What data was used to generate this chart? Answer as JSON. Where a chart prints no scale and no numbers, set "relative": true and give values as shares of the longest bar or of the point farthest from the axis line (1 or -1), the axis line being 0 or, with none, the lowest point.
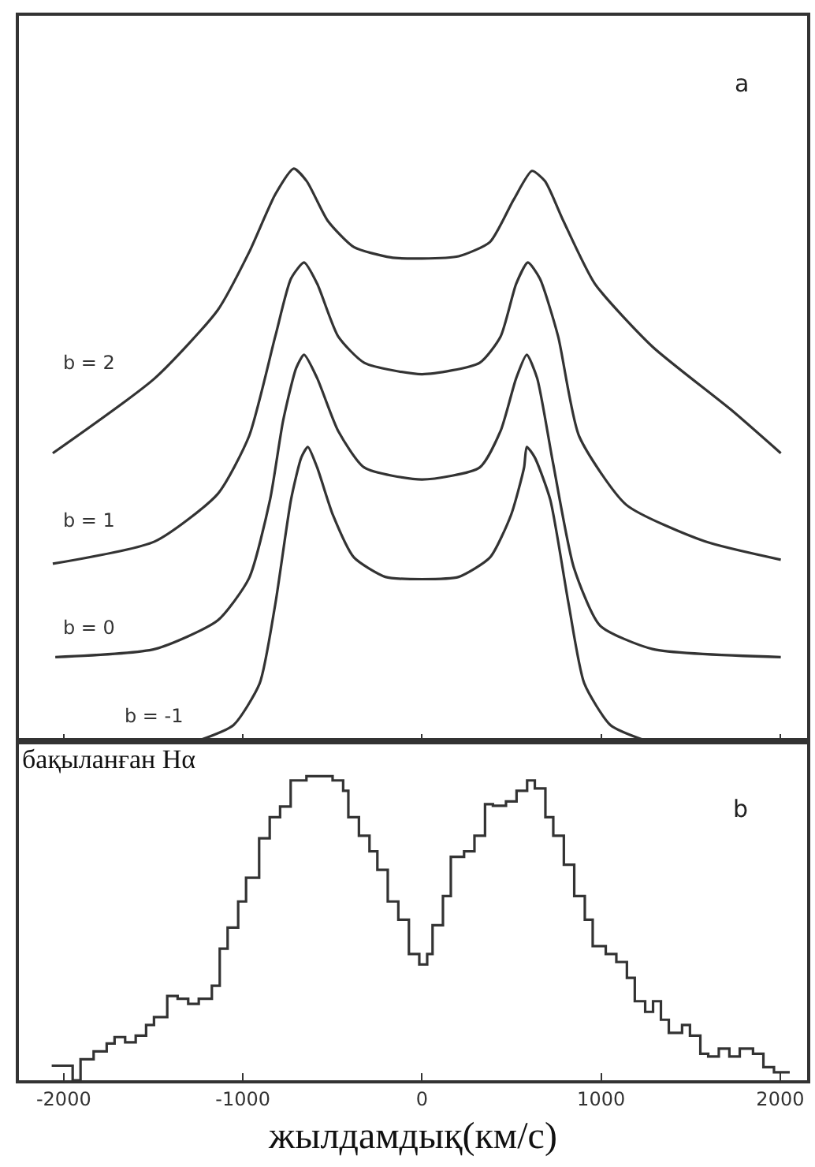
{
  "chart_data": [
    {
      "type": "line",
      "relative": true,
      "xlim": [
        -2250,
        2150
      ],
      "tick_labels": false,
      "annotations": [
        "a"
      ],
      "xticks": [
        -2000,
        -1000,
        0,
        1000,
        2000
      ],
      "series": [
        {
          "name": "b = 2",
          "color": "#333333",
          "x": [
            -2061,
            -1491,
            -1140,
            -965,
            -819,
            -716,
            -643,
            -526,
            -380,
            -175,
            0,
            205,
            380,
            512,
            614,
            687,
            789,
            965,
            1287,
            1725,
            2003
          ],
          "values": [
            0.503,
            0.634,
            0.753,
            0.854,
            0.955,
            1.0,
            0.978,
            0.909,
            0.863,
            0.845,
            0.843,
            0.847,
            0.872,
            0.946,
            0.996,
            0.978,
            0.909,
            0.799,
            0.689,
            0.579,
            0.503
          ]
        },
        {
          "name": "b = 1",
          "color": "#333333",
          "x": [
            -2061,
            -1491,
            -1140,
            -965,
            -819,
            -731,
            -658,
            -585,
            -468,
            -322,
            0,
            322,
            439,
            526,
            591,
            658,
            760,
            877,
            1140,
            1579,
            2003
          ],
          "values": [
            0.31,
            0.349,
            0.432,
            0.533,
            0.707,
            0.808,
            0.836,
            0.799,
            0.707,
            0.661,
            0.641,
            0.661,
            0.707,
            0.799,
            0.836,
            0.808,
            0.707,
            0.533,
            0.413,
            0.349,
            0.317
          ]
        },
        {
          "name": "b = 0",
          "color": "#333333",
          "x": [
            -2047,
            -1491,
            -1140,
            -965,
            -848,
            -775,
            -702,
            -658,
            -585,
            -468,
            -322,
            0,
            322,
            439,
            526,
            585,
            643,
            731,
            848,
            994,
            1287,
            2003
          ],
          "values": [
            0.147,
            0.161,
            0.211,
            0.285,
            0.422,
            0.56,
            0.652,
            0.675,
            0.634,
            0.542,
            0.478,
            0.457,
            0.478,
            0.542,
            0.634,
            0.675,
            0.634,
            0.487,
            0.303,
            0.202,
            0.161,
            0.147
          ]
        },
        {
          "name": "b = -1",
          "color": "#333333",
          "x": [
            -1257,
            -1053,
            -906,
            -819,
            -731,
            -673,
            -637,
            -585,
            -497,
            -380,
            -205,
            0,
            205,
            380,
            497,
            570,
            585,
            629,
            716,
            819,
            906,
            1053,
            1257
          ],
          "values": [
            0,
            0.028,
            0.101,
            0.239,
            0.422,
            0.496,
            0.514,
            0.478,
            0.395,
            0.321,
            0.287,
            0.283,
            0.287,
            0.321,
            0.395,
            0.478,
            0.514,
            0.496,
            0.422,
            0.239,
            0.101,
            0.028,
            0
          ]
        }
      ]
    },
    {
      "type": "step",
      "relative": true,
      "xlim": [
        -2250,
        2150
      ],
      "xlabel": "жылдамдық(км/с)",
      "annotations": [
        "b"
      ],
      "xticks": [
        -2000,
        -1000,
        0,
        1000,
        2000
      ],
      "series": [
        {
          "name": "бақыланған Hα",
          "color": "#333333",
          "x": [
            -2067,
            -1950,
            -1906,
            -1833,
            -1760,
            -1716,
            -1657,
            -1598,
            -1540,
            -1496,
            -1422,
            -1364,
            -1305,
            -1246,
            -1173,
            -1129,
            -1085,
            -1026,
            -982,
            -909,
            -850,
            -792,
            -733,
            -645,
            -499,
            -440,
            -411,
            -352,
            -293,
            -249,
            -191,
            -132,
            -73,
            -15,
            29,
            59,
            117,
            161,
            235,
            293,
            352,
            396,
            469,
            528,
            587,
            630,
            689,
            733,
            792,
            850,
            909,
            953,
            1026,
            1085,
            1144,
            1188,
            1246,
            1290,
            1334,
            1378,
            1452,
            1496,
            1554,
            1598,
            1657,
            1716,
            1774,
            1848,
            1906,
            1965,
            2053
          ],
          "values": [
            0.048,
            0,
            0.069,
            0.095,
            0.121,
            0.142,
            0.125,
            0.147,
            0.182,
            0.208,
            0.277,
            0.268,
            0.251,
            0.268,
            0.311,
            0.433,
            0.502,
            0.588,
            0.666,
            0.796,
            0.865,
            0.9,
            0.986,
            1.0,
            0.986,
            0.952,
            0.865,
            0.804,
            0.753,
            0.692,
            0.588,
            0.528,
            0.415,
            0.381,
            0.415,
            0.51,
            0.606,
            0.735,
            0.753,
            0.804,
            0.908,
            0.903,
            0.917,
            0.952,
            0.986,
            0.96,
            0.865,
            0.804,
            0.709,
            0.606,
            0.528,
            0.441,
            0.415,
            0.389,
            0.337,
            0.26,
            0.225,
            0.26,
            0.199,
            0.156,
            0.182,
            0.147,
            0.087,
            0.078,
            0.104,
            0.078,
            0.104,
            0.087,
            0.043,
            0.026,
            0.026
          ]
        }
      ]
    }
  ]
}
